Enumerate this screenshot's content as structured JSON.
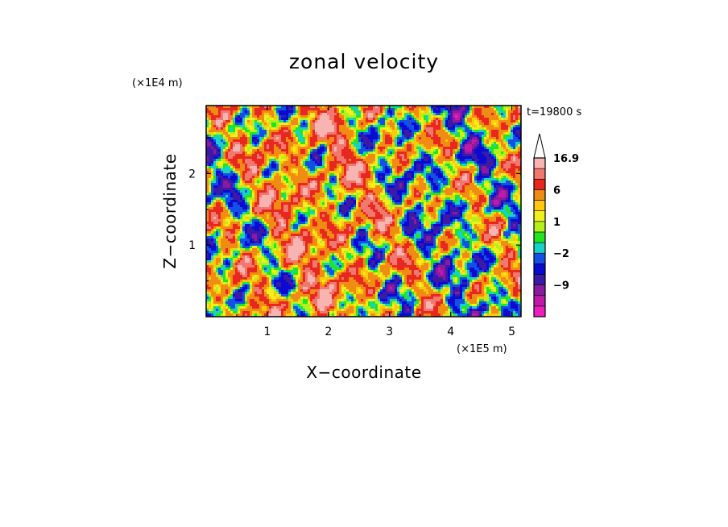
{
  "chart_data": {
    "type": "heatmap",
    "title": "zonal velocity",
    "xlabel": "X−coordinate",
    "ylabel": "Z−coordinate",
    "x_multiplier": "(×1E5 m)",
    "y_multiplier": "(×1E4 m)",
    "time_label": "t=19800 s",
    "xlim": [
      0,
      5.15
    ],
    "ylim": [
      0,
      2.95
    ],
    "x_ticks": [
      1,
      2,
      3,
      4,
      5
    ],
    "y_ticks": [
      1,
      2
    ],
    "x_tick_labels": [
      "1",
      "2",
      "3",
      "4",
      "5"
    ],
    "y_tick_labels": [
      "1",
      "2"
    ],
    "colorbar": {
      "levels": [
        -15,
        -12,
        -9,
        -6,
        -4,
        -2,
        -1,
        0,
        1,
        2,
        3,
        6,
        9,
        12,
        16.9
      ],
      "colors": [
        "#ee1ebe",
        "#c01aa8",
        "#8c1aa0",
        "#3c1aa8",
        "#0a0ad0",
        "#1450e6",
        "#18d2c8",
        "#20e620",
        "#b4f01e",
        "#f0f01e",
        "#ffc80a",
        "#f08c14",
        "#e8281e",
        "#f0786e",
        "#f7b4b0"
      ],
      "labels": [
        {
          "value": 16.9,
          "text": "16.9"
        },
        {
          "value": 6,
          "text": "6"
        },
        {
          "value": 1,
          "text": "1"
        },
        {
          "value": -2,
          "text": "−2"
        },
        {
          "value": -9,
          "text": "−9"
        }
      ]
    }
  }
}
